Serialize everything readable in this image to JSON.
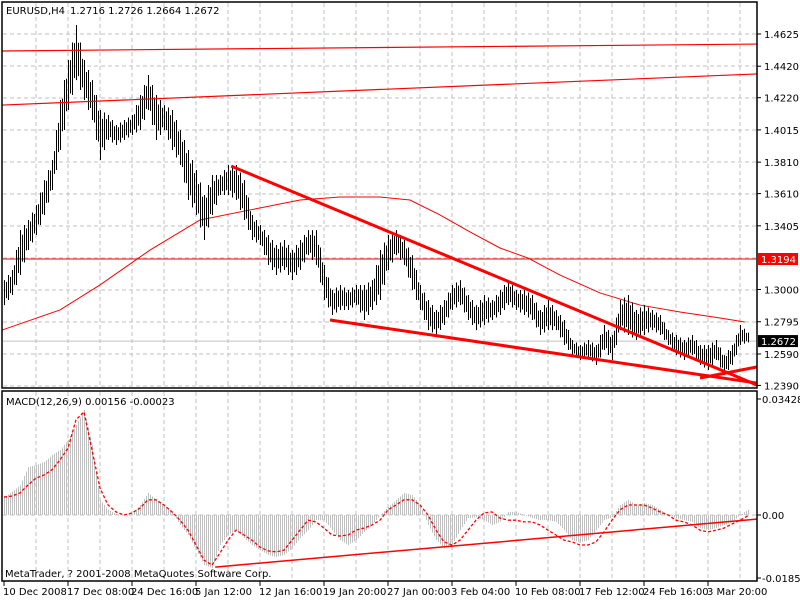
{
  "header": {
    "symbol_label": "EURUSD,H4",
    "ohlc_label": "1.2716 1.2726 1.2664 1.2672"
  },
  "macd_panel": {
    "label": "MACD(12,26,9) 0.00156 -0.00023",
    "copyright": "MetaTrader, ? 2001-2008 MetaQuotes Software Corp."
  },
  "colors": {
    "background": "#ffffff",
    "bars": "#000000",
    "grid": "#c0c0c0",
    "lines": "#ff0000",
    "histogram": "#c0c0c0",
    "bid_line": "#c0c0c0"
  },
  "chart_data": [
    {
      "type": "ohlc-bar",
      "title": "EURUSD,H4",
      "ylim": [
        1.239,
        1.4625
      ],
      "y_ticks": [
        "1.4625",
        "1.4420",
        "1.4220",
        "1.4015",
        "1.3810",
        "1.3610",
        "1.3405",
        "1.3000",
        "1.2795",
        "1.2590",
        "1.2390"
      ],
      "x_ticks": [
        "10 Dec 2008",
        "17 Dec 08:00",
        "24 Dec 16:00",
        "5 Jan 12:00",
        "12 Jan 16:00",
        "19 Jan 20:00",
        "27 Jan 00:00",
        "3 Feb 04:00",
        "10 Feb 08:00",
        "17 Feb 12:00",
        "24 Feb 16:00",
        "3 Mar 20:00"
      ],
      "grid": true,
      "last_bar": {
        "open": 1.2716,
        "high": 1.2726,
        "low": 1.2664,
        "close": 1.2672
      },
      "bid_price": "1.2672",
      "marked_level": "1.3194",
      "bars_high_low": [
        [
          1.306,
          1.2901
        ],
        [
          1.3124,
          1.2965
        ],
        [
          1.3378,
          1.3092
        ],
        [
          1.3442,
          1.3251
        ],
        [
          1.3537,
          1.3347
        ],
        [
          1.3696,
          1.3474
        ],
        [
          1.3824,
          1.3633
        ],
        [
          1.4205,
          1.3887
        ],
        [
          1.446,
          1.4142
        ],
        [
          1.4682,
          1.4332
        ],
        [
          1.446,
          1.4205
        ],
        [
          1.4332,
          1.4078
        ],
        [
          1.4142,
          1.3824
        ],
        [
          1.411,
          1.3951
        ],
        [
          1.4046,
          1.3919
        ],
        [
          1.4078,
          1.3951
        ],
        [
          1.411,
          1.3983
        ],
        [
          1.4237,
          1.4014
        ],
        [
          1.4364,
          1.4142
        ],
        [
          1.4237,
          1.3951
        ],
        [
          1.4173,
          1.4014
        ],
        [
          1.4142,
          1.3887
        ],
        [
          1.4014,
          1.3792
        ],
        [
          1.3887,
          1.3569
        ],
        [
          1.376,
          1.3474
        ],
        [
          1.3601,
          1.3315
        ],
        [
          1.3728,
          1.3474
        ],
        [
          1.3728,
          1.3601
        ],
        [
          1.3792,
          1.3601
        ],
        [
          1.3792,
          1.3569
        ],
        [
          1.3696,
          1.3442
        ],
        [
          1.3474,
          1.3315
        ],
        [
          1.341,
          1.3283
        ],
        [
          1.3347,
          1.3156
        ],
        [
          1.3283,
          1.3092
        ],
        [
          1.3315,
          1.3124
        ],
        [
          1.3251,
          1.306
        ],
        [
          1.3315,
          1.3124
        ],
        [
          1.3378,
          1.3219
        ],
        [
          1.3378,
          1.3156
        ],
        [
          1.3156,
          1.2933
        ],
        [
          1.2997,
          1.2838
        ],
        [
          1.3029,
          1.287
        ],
        [
          1.2997,
          1.287
        ],
        [
          1.3029,
          1.2901
        ],
        [
          1.3029,
          1.2806
        ],
        [
          1.306,
          1.287
        ],
        [
          1.3251,
          1.2933
        ],
        [
          1.3347,
          1.3124
        ],
        [
          1.3378,
          1.3219
        ],
        [
          1.3315,
          1.3156
        ],
        [
          1.3219,
          1.2997
        ],
        [
          1.3029,
          1.287
        ],
        [
          1.2933,
          1.2742
        ],
        [
          1.287,
          1.2711
        ],
        [
          1.2933,
          1.2774
        ],
        [
          1.3029,
          1.287
        ],
        [
          1.306,
          1.2901
        ],
        [
          1.2965,
          1.2806
        ],
        [
          1.2901,
          1.2742
        ],
        [
          1.2965,
          1.2774
        ],
        [
          1.2933,
          1.2806
        ],
        [
          1.2997,
          1.2838
        ],
        [
          1.306,
          1.2901
        ],
        [
          1.2997,
          1.287
        ],
        [
          1.2997,
          1.2838
        ],
        [
          1.2965,
          1.2806
        ],
        [
          1.287,
          1.2711
        ],
        [
          1.2933,
          1.2742
        ],
        [
          1.287,
          1.2742
        ],
        [
          1.2806,
          1.2647
        ],
        [
          1.2679,
          1.2583
        ],
        [
          1.2647,
          1.2552
        ],
        [
          1.2679,
          1.2565
        ],
        [
          1.2647,
          1.252
        ],
        [
          1.2774,
          1.2615
        ],
        [
          1.2711,
          1.2552
        ],
        [
          1.2933,
          1.2742
        ],
        [
          1.2965,
          1.2711
        ],
        [
          1.287,
          1.2679
        ],
        [
          1.2901,
          1.2711
        ],
        [
          1.287,
          1.2742
        ],
        [
          1.2838,
          1.2711
        ],
        [
          1.2742,
          1.2647
        ],
        [
          1.2711,
          1.2583
        ],
        [
          1.2679,
          1.2552
        ],
        [
          1.2711,
          1.2583
        ],
        [
          1.2647,
          1.252
        ],
        [
          1.2647,
          1.2488
        ],
        [
          1.2679,
          1.2552
        ],
        [
          1.2583,
          1.2456
        ],
        [
          1.2647,
          1.252
        ],
        [
          1.2774,
          1.2647
        ],
        [
          1.2726,
          1.2664
        ]
      ],
      "moving_average": [
        [
          -0.25,
          1.2742
        ],
        [
          7,
          1.287
        ],
        [
          12,
          1.3029
        ],
        [
          18.25,
          1.3251
        ],
        [
          24.5,
          1.3442
        ],
        [
          30.75,
          1.3506
        ],
        [
          37,
          1.3569
        ],
        [
          42,
          1.3588
        ],
        [
          47,
          1.3588
        ],
        [
          50.75,
          1.3569
        ],
        [
          54.5,
          1.3474
        ],
        [
          58.25,
          1.3366
        ],
        [
          62,
          1.3264
        ],
        [
          65.5,
          1.32
        ],
        [
          69.5,
          1.3092
        ],
        [
          74.5,
          1.2978
        ],
        [
          79.5,
          1.2901
        ],
        [
          84.5,
          1.2857
        ],
        [
          89.5,
          1.2819
        ],
        [
          92.6,
          1.2793
        ]
      ],
      "trendlines": [
        {
          "from": [
            -0.25,
            1.4517
          ],
          "to": [
            94.1,
            1.4561
          ],
          "weight": "thin"
        },
        {
          "from": [
            -0.25,
            1.4173
          ],
          "to": [
            94.1,
            1.4371
          ],
          "weight": "thin"
        },
        {
          "from": [
            28.4,
            1.3785
          ],
          "to": [
            94.1,
            1.2393
          ],
          "weight": "thick"
        },
        {
          "from": [
            40.75,
            1.2806
          ],
          "to": [
            94.1,
            1.2405
          ],
          "weight": "thick"
        },
        {
          "from": [
            87,
            1.2437
          ],
          "to": [
            94.1,
            1.2507
          ],
          "weight": "thick"
        }
      ]
    },
    {
      "type": "bar",
      "title": "MACD(12,26,9) 0.00156 -0.00023",
      "ylim": [
        -0.01853,
        0.03428
      ],
      "y_ticks": [
        "0.03428",
        "0.00",
        "-0.01853"
      ],
      "series": [
        {
          "name": "MACD",
          "values": [
            0.0052,
            0.0067,
            0.0087,
            0.0139,
            0.0145,
            0.0154,
            0.0174,
            0.0189,
            0.0218,
            0.0261,
            0.0305,
            0.0203,
            0.0044,
            0.0015,
            0.0003,
            0,
            0.0003,
            0.0029,
            0.0064,
            0.0044,
            0.0029,
            0.0009,
            -0.0029,
            -0.0058,
            -0.0102,
            -0.0145,
            -0.0154,
            -0.0087,
            -0.0058,
            -0.0044,
            -0.0067,
            -0.0087,
            -0.0102,
            -0.0116,
            -0.0122,
            -0.0116,
            -0.0096,
            -0.0067,
            -0.0044,
            -0.0015,
            -0.0015,
            -0.0044,
            -0.0073,
            -0.0087,
            -0.0073,
            -0.0049,
            -0.0029,
            0,
            0.0023,
            0.0044,
            0.0064,
            0.0058,
            0.0029,
            -0.0029,
            -0.0073,
            -0.0096,
            -0.0087,
            -0.0044,
            -0.0009,
            -0.0006,
            -0.0015,
            -0.0029,
            -0.002,
            0.0009,
            0.0009,
            0,
            -0.0009,
            -0.0015,
            -0.0015,
            -0.002,
            -0.0044,
            -0.0073,
            -0.0079,
            -0.0073,
            -0.0044,
            -0.0015,
            -0.0006,
            0.0029,
            0.0044,
            0.0029,
            0.0035,
            0.0029,
            0.0015,
            0,
            -0.0009,
            -0.0015,
            -0.002,
            -0.0038,
            -0.0044,
            -0.0038,
            -0.0029,
            -0.002,
            0,
            0.00156
          ]
        },
        {
          "name": "Signal",
          "values": [
            0.0052,
            0.0055,
            0.0064,
            0.0087,
            0.0107,
            0.0116,
            0.0131,
            0.016,
            0.0194,
            0.0276,
            0.0299,
            0.0189,
            0.0078,
            0.0029,
            0.0009,
            0,
            0.0006,
            0.002,
            0.0044,
            0.0044,
            0.0029,
            0.0009,
            -0.0015,
            -0.0044,
            -0.0087,
            -0.0131,
            -0.0145,
            -0.011,
            -0.0073,
            -0.0044,
            -0.0058,
            -0.0073,
            -0.0093,
            -0.0104,
            -0.0107,
            -0.0102,
            -0.0073,
            -0.0044,
            -0.0015,
            -0.002,
            -0.0038,
            -0.0058,
            -0.0061,
            -0.0058,
            -0.0044,
            -0.0038,
            -0.0029,
            -0.0015,
            0.0015,
            0.0029,
            0.0044,
            0.0044,
            0.0029,
            0,
            -0.0044,
            -0.0078,
            -0.0087,
            -0.0073,
            -0.0044,
            -0.0015,
            0.0006,
            0.0009,
            -0.0009,
            -0.0015,
            -0.0015,
            -0.002,
            -0.002,
            -0.0029,
            -0.0044,
            -0.0058,
            -0.0073,
            -0.0078,
            -0.0087,
            -0.0087,
            -0.0078,
            -0.0049,
            -0.0015,
            0.0015,
            0.0029,
            0.0029,
            0.0029,
            0.002,
            0.0009,
            0,
            -0.0015,
            -0.002,
            -0.0029,
            -0.0044,
            -0.0049,
            -0.0044,
            -0.0038,
            -0.0026,
            -0.0015,
            -0.00023
          ]
        }
      ],
      "trendlines": [
        {
          "from": [
            26.4,
            -0.0151
          ],
          "to": [
            94.1,
            -0.0012
          ]
        }
      ]
    }
  ]
}
